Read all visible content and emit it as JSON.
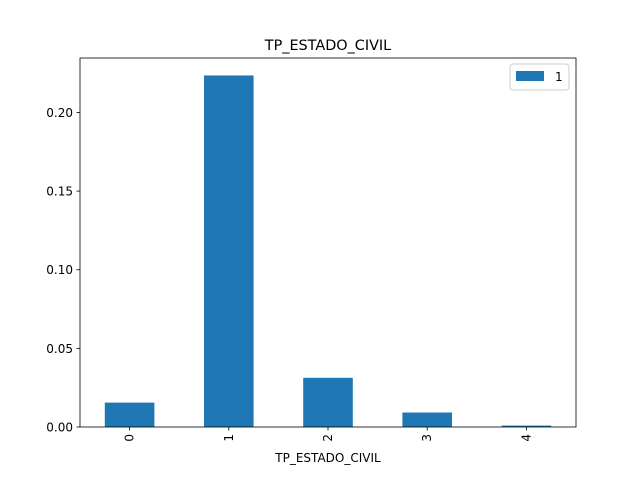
{
  "chart_data": {
    "type": "bar",
    "title": "TP_ESTADO_CIVIL",
    "xlabel": "TP_ESTADO_CIVIL",
    "ylabel": "",
    "categories": [
      "0",
      "1",
      "2",
      "3",
      "4"
    ],
    "series": [
      {
        "name": "1",
        "values": [
          0.0155,
          0.2235,
          0.0313,
          0.0092,
          0.0009
        ],
        "color": "#1f77b4"
      }
    ],
    "ylim": [
      0,
      0.2346
    ],
    "yticks": [
      0.0,
      0.05,
      0.1,
      0.15,
      0.2
    ],
    "ytick_labels": [
      "0.00",
      "0.05",
      "0.10",
      "0.15",
      "0.20"
    ],
    "xtick_rotation": "vertical",
    "grid": false,
    "legend": "upper right"
  }
}
